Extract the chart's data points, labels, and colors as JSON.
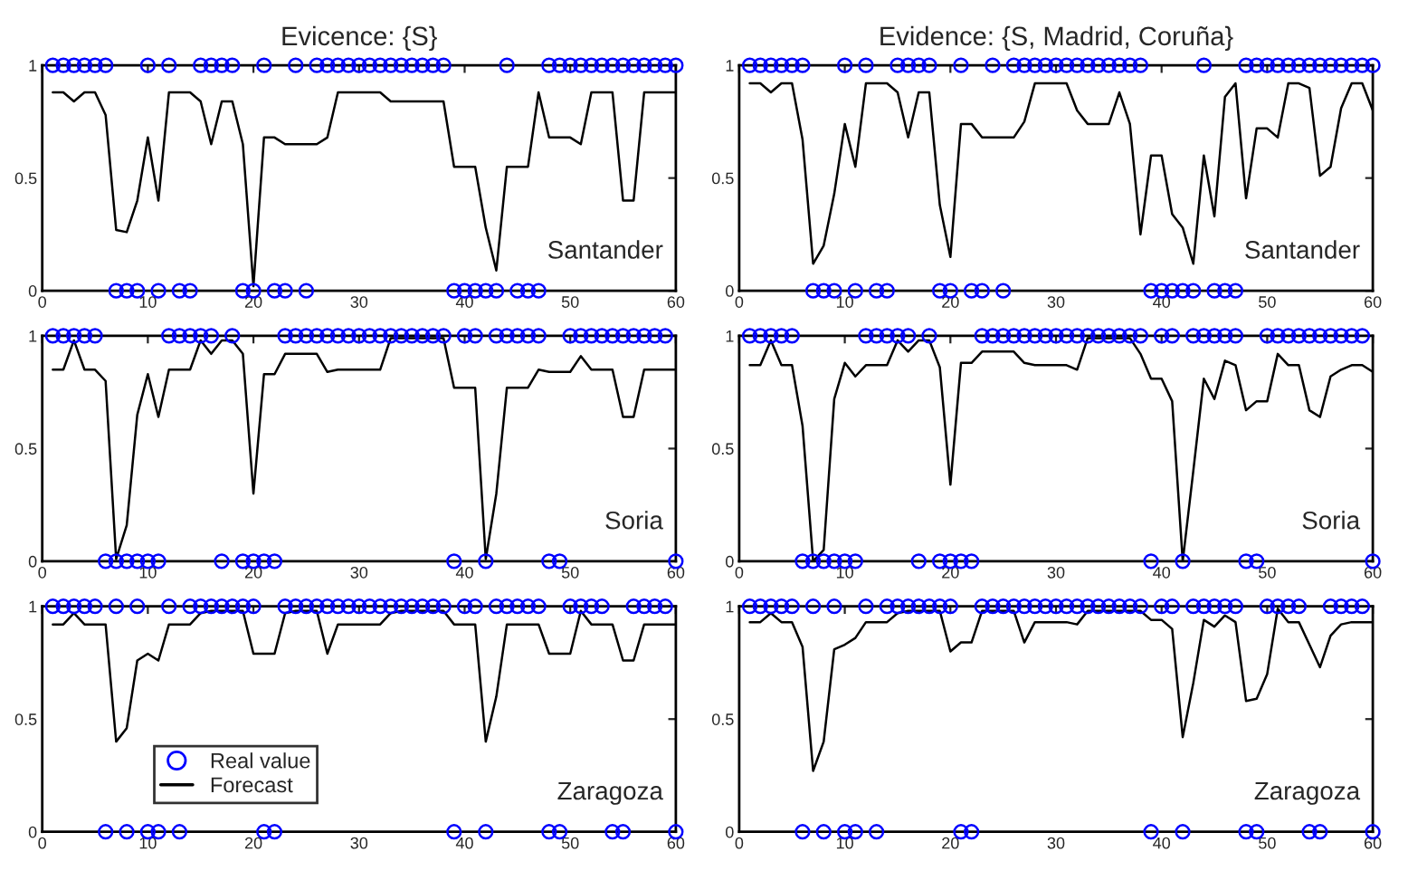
{
  "chart_data": [
    {
      "type": "line",
      "title": "Evicence: {S}",
      "annotations": [
        "Santander"
      ],
      "x": [
        1,
        2,
        3,
        4,
        5,
        6,
        7,
        8,
        9,
        10,
        11,
        12,
        13,
        14,
        15,
        16,
        17,
        18,
        19,
        20,
        21,
        22,
        23,
        24,
        25,
        26,
        27,
        28,
        29,
        30,
        31,
        32,
        33,
        34,
        35,
        36,
        37,
        38,
        39,
        40,
        41,
        42,
        43,
        44,
        45,
        46,
        47,
        48,
        49,
        50,
        51,
        52,
        53,
        54,
        55,
        56,
        57,
        58,
        59,
        60
      ],
      "xlim": [
        0,
        60
      ],
      "xticks": [
        0,
        10,
        20,
        30,
        40,
        50,
        60
      ],
      "ylim": [
        0,
        1
      ],
      "yticks": [
        0,
        0.5,
        1
      ],
      "grid": false,
      "legend": false,
      "series": [
        {
          "type": "scatter",
          "marker": "circle",
          "color": "#0000ff",
          "values": [
            1,
            1,
            1,
            1,
            1,
            1,
            0,
            0,
            0,
            1,
            0,
            1,
            0,
            0,
            1,
            1,
            1,
            1,
            0,
            0,
            1,
            0,
            0,
            1,
            0,
            1,
            1,
            1,
            1,
            1,
            1,
            1,
            1,
            1,
            1,
            1,
            1,
            1,
            0,
            0,
            0,
            0,
            0,
            1,
            0,
            0,
            0,
            1,
            1,
            1,
            1,
            1,
            1,
            1,
            1,
            1,
            1,
            1,
            1,
            1
          ]
        },
        {
          "line_style": "solid",
          "color": "#000000",
          "values": [
            0.88,
            0.88,
            0.84,
            0.88,
            0.88,
            0.78,
            0.27,
            0.26,
            0.4,
            0.68,
            0.4,
            0.88,
            0.88,
            0.88,
            0.84,
            0.65,
            0.84,
            0.84,
            0.65,
            0.02,
            0.68,
            0.68,
            0.65,
            0.65,
            0.65,
            0.65,
            0.68,
            0.88,
            0.88,
            0.88,
            0.88,
            0.88,
            0.84,
            0.84,
            0.84,
            0.84,
            0.84,
            0.84,
            0.55,
            0.55,
            0.55,
            0.28,
            0.09,
            0.55,
            0.55,
            0.55,
            0.88,
            0.68,
            0.68,
            0.68,
            0.65,
            0.88,
            0.88,
            0.88,
            0.4,
            0.4,
            0.88,
            0.88,
            0.88,
            0.88
          ]
        }
      ]
    },
    {
      "type": "line",
      "title": "Evidence: {S, Madrid, Coruña}",
      "annotations": [
        "Santander"
      ],
      "x": [
        1,
        2,
        3,
        4,
        5,
        6,
        7,
        8,
        9,
        10,
        11,
        12,
        13,
        14,
        15,
        16,
        17,
        18,
        19,
        20,
        21,
        22,
        23,
        24,
        25,
        26,
        27,
        28,
        29,
        30,
        31,
        32,
        33,
        34,
        35,
        36,
        37,
        38,
        39,
        40,
        41,
        42,
        43,
        44,
        45,
        46,
        47,
        48,
        49,
        50,
        51,
        52,
        53,
        54,
        55,
        56,
        57,
        58,
        59,
        60
      ],
      "xlim": [
        0,
        60
      ],
      "xticks": [
        0,
        10,
        20,
        30,
        40,
        50,
        60
      ],
      "ylim": [
        0,
        1
      ],
      "yticks": [
        0,
        0.5,
        1
      ],
      "grid": false,
      "legend": false,
      "series": [
        {
          "type": "scatter",
          "marker": "circle",
          "color": "#0000ff",
          "values": [
            1,
            1,
            1,
            1,
            1,
            1,
            0,
            0,
            0,
            1,
            0,
            1,
            0,
            0,
            1,
            1,
            1,
            1,
            0,
            0,
            1,
            0,
            0,
            1,
            0,
            1,
            1,
            1,
            1,
            1,
            1,
            1,
            1,
            1,
            1,
            1,
            1,
            1,
            0,
            0,
            0,
            0,
            0,
            1,
            0,
            0,
            0,
            1,
            1,
            1,
            1,
            1,
            1,
            1,
            1,
            1,
            1,
            1,
            1,
            1
          ]
        },
        {
          "line_style": "solid",
          "color": "#000000",
          "values": [
            0.92,
            0.92,
            0.88,
            0.92,
            0.92,
            0.67,
            0.12,
            0.2,
            0.43,
            0.74,
            0.55,
            0.92,
            0.92,
            0.92,
            0.88,
            0.68,
            0.88,
            0.88,
            0.38,
            0.15,
            0.74,
            0.74,
            0.68,
            0.68,
            0.68,
            0.68,
            0.75,
            0.92,
            0.92,
            0.92,
            0.92,
            0.8,
            0.74,
            0.74,
            0.74,
            0.88,
            0.74,
            0.25,
            0.6,
            0.6,
            0.34,
            0.28,
            0.12,
            0.6,
            0.33,
            0.86,
            0.92,
            0.41,
            0.72,
            0.72,
            0.68,
            0.92,
            0.92,
            0.9,
            0.51,
            0.55,
            0.81,
            0.92,
            0.92,
            0.8
          ]
        }
      ]
    },
    {
      "type": "line",
      "annotations": [
        "Soria"
      ],
      "x": [
        1,
        2,
        3,
        4,
        5,
        6,
        7,
        8,
        9,
        10,
        11,
        12,
        13,
        14,
        15,
        16,
        17,
        18,
        19,
        20,
        21,
        22,
        23,
        24,
        25,
        26,
        27,
        28,
        29,
        30,
        31,
        32,
        33,
        34,
        35,
        36,
        37,
        38,
        39,
        40,
        41,
        42,
        43,
        44,
        45,
        46,
        47,
        48,
        49,
        50,
        51,
        52,
        53,
        54,
        55,
        56,
        57,
        58,
        59,
        60
      ],
      "xlim": [
        0,
        60
      ],
      "xticks": [
        0,
        10,
        20,
        30,
        40,
        50,
        60
      ],
      "ylim": [
        0,
        1
      ],
      "yticks": [
        0,
        0.5,
        1
      ],
      "grid": false,
      "legend": false,
      "series": [
        {
          "type": "scatter",
          "marker": "circle",
          "color": "#0000ff",
          "values": [
            1,
            1,
            1,
            1,
            1,
            0,
            0,
            0,
            0,
            0,
            0,
            1,
            1,
            1,
            1,
            1,
            0,
            1,
            0,
            0,
            0,
            0,
            1,
            1,
            1,
            1,
            1,
            1,
            1,
            1,
            1,
            1,
            1,
            1,
            1,
            1,
            1,
            1,
            0,
            1,
            1,
            0,
            1,
            1,
            1,
            1,
            1,
            0,
            0,
            1,
            1,
            1,
            1,
            1,
            1,
            1,
            1,
            1,
            1,
            0
          ]
        },
        {
          "line_style": "solid",
          "color": "#000000",
          "values": [
            0.85,
            0.85,
            0.98,
            0.85,
            0.85,
            0.8,
            0.01,
            0.16,
            0.65,
            0.83,
            0.64,
            0.85,
            0.85,
            0.85,
            0.98,
            0.92,
            0.98,
            0.98,
            0.92,
            0.3,
            0.83,
            0.83,
            0.92,
            0.92,
            0.92,
            0.92,
            0.84,
            0.85,
            0.85,
            0.85,
            0.85,
            0.85,
            0.99,
            0.99,
            0.99,
            0.99,
            0.99,
            0.99,
            0.77,
            0.77,
            0.77,
            0.01,
            0.3,
            0.77,
            0.77,
            0.77,
            0.85,
            0.84,
            0.84,
            0.84,
            0.91,
            0.85,
            0.85,
            0.85,
            0.64,
            0.64,
            0.85,
            0.85,
            0.85,
            0.85
          ]
        }
      ]
    },
    {
      "type": "line",
      "annotations": [
        "Soria"
      ],
      "x": [
        1,
        2,
        3,
        4,
        5,
        6,
        7,
        8,
        9,
        10,
        11,
        12,
        13,
        14,
        15,
        16,
        17,
        18,
        19,
        20,
        21,
        22,
        23,
        24,
        25,
        26,
        27,
        28,
        29,
        30,
        31,
        32,
        33,
        34,
        35,
        36,
        37,
        38,
        39,
        40,
        41,
        42,
        43,
        44,
        45,
        46,
        47,
        48,
        49,
        50,
        51,
        52,
        53,
        54,
        55,
        56,
        57,
        58,
        59,
        60
      ],
      "xlim": [
        0,
        60
      ],
      "xticks": [
        0,
        10,
        20,
        30,
        40,
        50,
        60
      ],
      "ylim": [
        0,
        1
      ],
      "yticks": [
        0,
        0.5,
        1
      ],
      "grid": false,
      "legend": false,
      "series": [
        {
          "type": "scatter",
          "marker": "circle",
          "color": "#0000ff",
          "values": [
            1,
            1,
            1,
            1,
            1,
            0,
            0,
            0,
            0,
            0,
            0,
            1,
            1,
            1,
            1,
            1,
            0,
            1,
            0,
            0,
            0,
            0,
            1,
            1,
            1,
            1,
            1,
            1,
            1,
            1,
            1,
            1,
            1,
            1,
            1,
            1,
            1,
            1,
            0,
            1,
            1,
            0,
            1,
            1,
            1,
            1,
            1,
            0,
            0,
            1,
            1,
            1,
            1,
            1,
            1,
            1,
            1,
            1,
            1,
            0
          ]
        },
        {
          "line_style": "solid",
          "color": "#000000",
          "values": [
            0.87,
            0.87,
            0.98,
            0.87,
            0.87,
            0.6,
            0.0,
            0.05,
            0.72,
            0.88,
            0.82,
            0.87,
            0.87,
            0.87,
            0.98,
            0.93,
            0.98,
            0.98,
            0.86,
            0.34,
            0.88,
            0.88,
            0.93,
            0.93,
            0.93,
            0.93,
            0.88,
            0.87,
            0.87,
            0.87,
            0.87,
            0.85,
            0.99,
            0.99,
            0.99,
            0.99,
            0.99,
            0.92,
            0.81,
            0.81,
            0.71,
            0.0,
            0.4,
            0.81,
            0.72,
            0.89,
            0.87,
            0.67,
            0.71,
            0.71,
            0.92,
            0.87,
            0.87,
            0.67,
            0.64,
            0.82,
            0.85,
            0.87,
            0.87,
            0.84
          ]
        }
      ]
    },
    {
      "type": "line",
      "annotations": [
        "Zaragoza"
      ],
      "x": [
        1,
        2,
        3,
        4,
        5,
        6,
        7,
        8,
        9,
        10,
        11,
        12,
        13,
        14,
        15,
        16,
        17,
        18,
        19,
        20,
        21,
        22,
        23,
        24,
        25,
        26,
        27,
        28,
        29,
        30,
        31,
        32,
        33,
        34,
        35,
        36,
        37,
        38,
        39,
        40,
        41,
        42,
        43,
        44,
        45,
        46,
        47,
        48,
        49,
        50,
        51,
        52,
        53,
        54,
        55,
        56,
        57,
        58,
        59,
        60
      ],
      "xlim": [
        0,
        60
      ],
      "xticks": [
        0,
        10,
        20,
        30,
        40,
        50,
        60
      ],
      "ylim": [
        0,
        1
      ],
      "yticks": [
        0,
        0.5,
        1
      ],
      "grid": false,
      "legend": "bottom left",
      "series": [
        {
          "type": "scatter",
          "name": "Real value",
          "marker": "circle",
          "color": "#0000ff",
          "values": [
            1,
            1,
            1,
            1,
            1,
            0,
            1,
            0,
            1,
            0,
            0,
            1,
            0,
            1,
            1,
            1,
            1,
            1,
            1,
            1,
            0,
            0,
            1,
            1,
            1,
            1,
            1,
            1,
            1,
            1,
            1,
            1,
            1,
            1,
            1,
            1,
            1,
            1,
            0,
            1,
            1,
            0,
            1,
            1,
            1,
            1,
            1,
            0,
            0,
            1,
            1,
            1,
            1,
            0,
            0,
            1,
            1,
            1,
            1,
            0
          ]
        },
        {
          "name": "Forecast",
          "line_style": "solid",
          "color": "#000000",
          "values": [
            0.92,
            0.92,
            0.97,
            0.92,
            0.92,
            0.92,
            0.4,
            0.46,
            0.76,
            0.79,
            0.76,
            0.92,
            0.92,
            0.92,
            0.97,
            0.98,
            0.98,
            0.98,
            0.98,
            0.79,
            0.79,
            0.79,
            0.97,
            0.98,
            0.98,
            0.98,
            0.79,
            0.92,
            0.92,
            0.92,
            0.92,
            0.92,
            0.97,
            0.98,
            0.98,
            0.98,
            0.98,
            0.98,
            0.92,
            0.92,
            0.92,
            0.4,
            0.6,
            0.92,
            0.92,
            0.92,
            0.92,
            0.79,
            0.79,
            0.79,
            0.98,
            0.92,
            0.92,
            0.92,
            0.76,
            0.76,
            0.92,
            0.92,
            0.92,
            0.92
          ]
        }
      ]
    },
    {
      "type": "line",
      "annotations": [
        "Zaragoza"
      ],
      "x": [
        1,
        2,
        3,
        4,
        5,
        6,
        7,
        8,
        9,
        10,
        11,
        12,
        13,
        14,
        15,
        16,
        17,
        18,
        19,
        20,
        21,
        22,
        23,
        24,
        25,
        26,
        27,
        28,
        29,
        30,
        31,
        32,
        33,
        34,
        35,
        36,
        37,
        38,
        39,
        40,
        41,
        42,
        43,
        44,
        45,
        46,
        47,
        48,
        49,
        50,
        51,
        52,
        53,
        54,
        55,
        56,
        57,
        58,
        59,
        60
      ],
      "xlim": [
        0,
        60
      ],
      "xticks": [
        0,
        10,
        20,
        30,
        40,
        50,
        60
      ],
      "ylim": [
        0,
        1
      ],
      "yticks": [
        0,
        0.5,
        1
      ],
      "grid": false,
      "legend": false,
      "series": [
        {
          "type": "scatter",
          "marker": "circle",
          "color": "#0000ff",
          "values": [
            1,
            1,
            1,
            1,
            1,
            0,
            1,
            0,
            1,
            0,
            0,
            1,
            0,
            1,
            1,
            1,
            1,
            1,
            1,
            1,
            0,
            0,
            1,
            1,
            1,
            1,
            1,
            1,
            1,
            1,
            1,
            1,
            1,
            1,
            1,
            1,
            1,
            1,
            0,
            1,
            1,
            0,
            1,
            1,
            1,
            1,
            1,
            0,
            0,
            1,
            1,
            1,
            1,
            0,
            0,
            1,
            1,
            1,
            1,
            0
          ]
        },
        {
          "line_style": "solid",
          "color": "#000000",
          "values": [
            0.93,
            0.93,
            0.97,
            0.93,
            0.93,
            0.82,
            0.27,
            0.4,
            0.81,
            0.83,
            0.86,
            0.93,
            0.93,
            0.93,
            0.97,
            0.98,
            0.98,
            0.98,
            0.98,
            0.8,
            0.84,
            0.84,
            0.98,
            0.98,
            0.98,
            0.98,
            0.84,
            0.93,
            0.93,
            0.93,
            0.93,
            0.92,
            0.98,
            0.98,
            0.98,
            0.98,
            0.98,
            0.98,
            0.94,
            0.94,
            0.9,
            0.42,
            0.66,
            0.94,
            0.91,
            0.96,
            0.93,
            0.58,
            0.59,
            0.7,
            0.99,
            0.93,
            0.93,
            0.83,
            0.73,
            0.87,
            0.92,
            0.93,
            0.93,
            0.93
          ]
        }
      ]
    }
  ]
}
